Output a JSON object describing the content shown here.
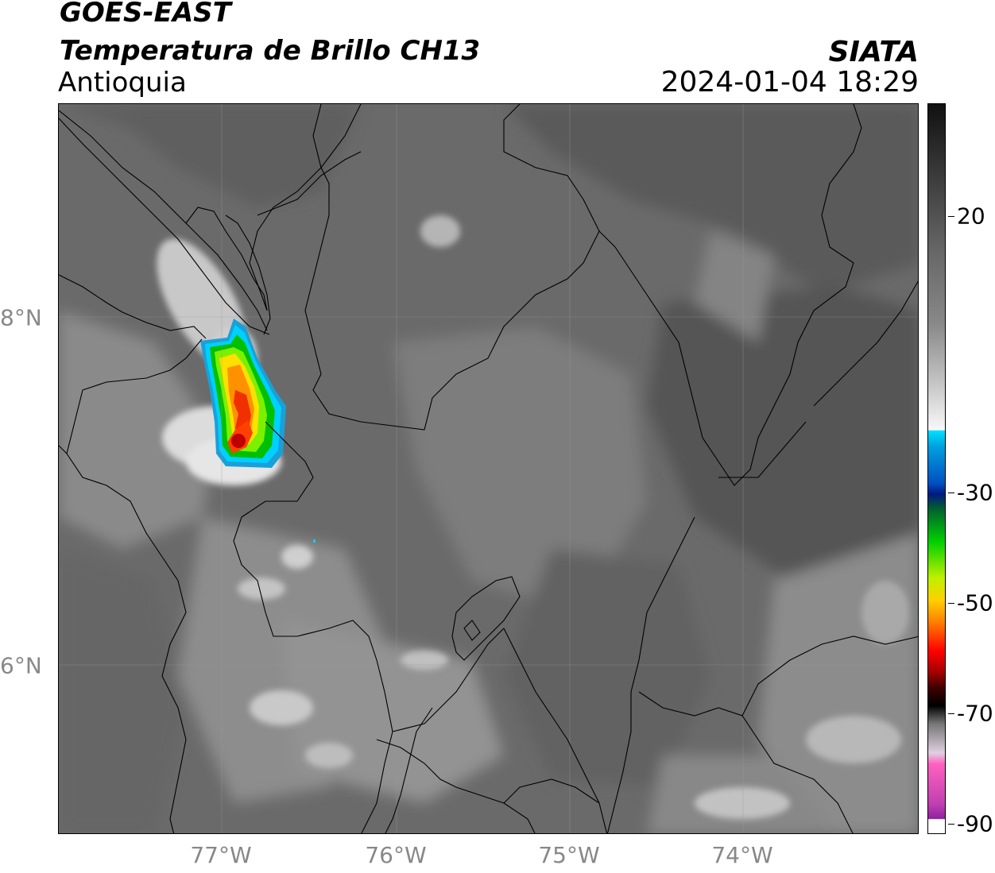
{
  "header": {
    "satellite": "GOES-EAST",
    "product": "Temperatura de Brillo CH13",
    "region": "Antioquia",
    "agency": "SIATA",
    "datetime": "2024-01-04 18:29"
  },
  "map": {
    "lon_ticks": [
      "77°W",
      "76°W",
      "75°W",
      "74°W"
    ],
    "lat_ticks": [
      "8°N",
      "6°N"
    ]
  },
  "colorbar": {
    "ticks": [
      "20",
      "-30",
      "-50",
      "-70",
      "-90"
    ]
  }
}
